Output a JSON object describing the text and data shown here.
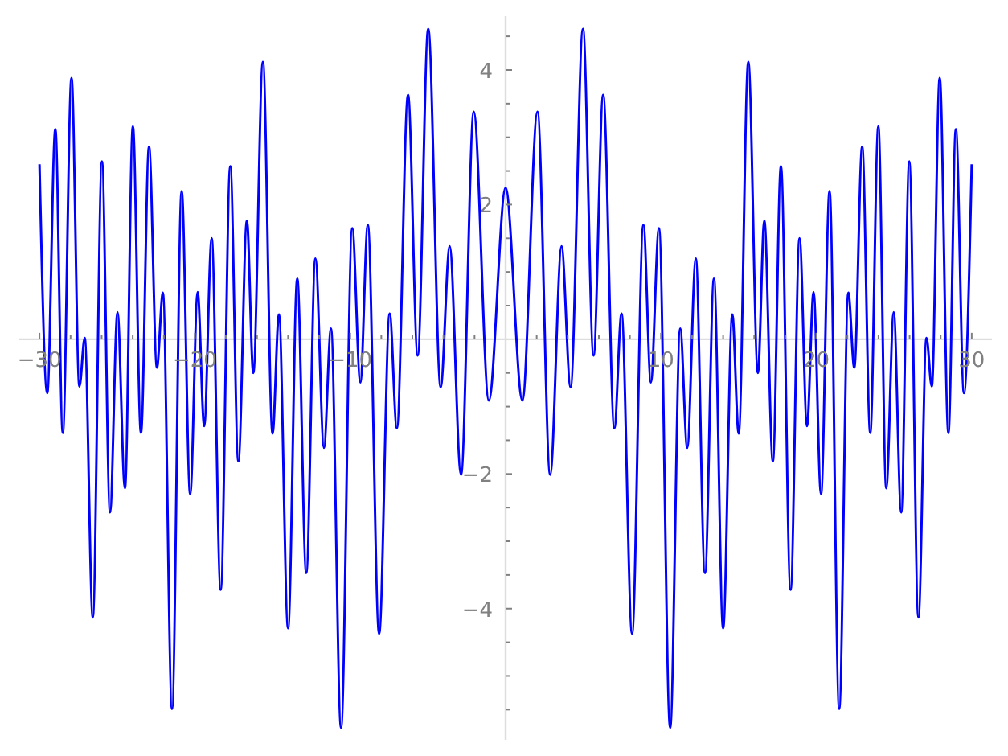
{
  "chart_data": {
    "type": "line",
    "x": [
      -30,
      -29.5,
      -28.98,
      -28.5,
      -27.94,
      -27.43,
      -27.09,
      -26.57,
      -25.98,
      -25.46,
      -24.98,
      -24.5,
      -23.99,
      -23.47,
      -22.95,
      -22.44,
      -22.06,
      -21.47,
      -20.85,
      -20.3,
      -19.82,
      -19.4,
      -18.92,
      -18.34,
      -17.72,
      -17.2,
      -16.65,
      -16.24,
      -15.62,
      -15,
      -14.59,
      -14,
      -13.41,
      -12.83,
      -12.24,
      -11.69,
      -11.24,
      -10.59,
      -9.87,
      -9.35,
      -8.87,
      -8.14,
      -7.46,
      -7,
      -6.28,
      -5.66,
      -4.98,
      -4.18,
      -3.6,
      -2.87,
      -2.05,
      -1.08,
      0,
      1.08,
      2.05,
      2.87,
      3.6,
      4.18,
      4.98,
      5.66,
      6.28,
      7,
      7.46,
      8.14,
      8.87,
      9.35,
      9.87,
      10.59,
      11.24,
      11.69,
      12.24,
      12.83,
      13.41,
      14,
      14.59,
      15,
      15.62,
      16.24,
      16.65,
      17.2,
      17.72,
      18.34,
      18.92,
      19.4,
      19.82,
      20.3,
      20.85,
      21.47,
      22.06,
      22.44,
      22.95,
      23.47,
      23.99,
      24.5,
      24.98,
      25.46,
      25.98,
      26.57,
      27.09,
      27.43,
      27.94,
      28.5,
      28.98,
      29.5,
      30
    ],
    "series": [
      {
        "color": "#0000ff",
        "values": [
          2.6,
          -0.8,
          3.12,
          -1.39,
          3.88,
          -0.7,
          0.02,
          -4.13,
          2.64,
          -2.57,
          0.4,
          -2.21,
          3.16,
          -1.39,
          2.86,
          -0.42,
          0.69,
          -5.49,
          2.2,
          -2.3,
          0.7,
          -1.29,
          1.5,
          -3.72,
          2.57,
          -1.81,
          1.76,
          -0.5,
          4.12,
          -1.4,
          0.37,
          -4.29,
          0.9,
          -3.47,
          1.2,
          -1.61,
          0.16,
          -5.77,
          1.65,
          -0.64,
          1.7,
          -4.37,
          0.38,
          -1.32,
          3.63,
          -0.24,
          4.61,
          -0.71,
          1.38,
          -2.01,
          3.38,
          -0.91,
          2.25,
          -0.91,
          3.38,
          -2.01,
          1.38,
          -0.71,
          4.61,
          -0.24,
          3.63,
          -1.32,
          0.38,
          -4.37,
          1.7,
          -0.64,
          1.65,
          -5.77,
          0.16,
          -1.61,
          1.2,
          -3.47,
          0.9,
          -4.29,
          0.37,
          -1.4,
          4.12,
          -0.5,
          1.76,
          -1.81,
          2.57,
          -3.72,
          1.5,
          -1.29,
          0.7,
          -2.3,
          2.2,
          -5.49,
          0.69,
          -0.42,
          2.86,
          -1.39,
          3.16,
          -2.21,
          0.4,
          -2.57,
          2.64,
          -4.13,
          0.02,
          -0.7,
          3.88,
          -1.39,
          3.12,
          -0.8,
          2.6
        ]
      }
    ],
    "xlim": [
      -31.3,
      31.3
    ],
    "ylim": [
      -5.95,
      4.8
    ],
    "xticks": [
      -30,
      {
        "value": -28,
        "label": null
      },
      {
        "value": -26,
        "label": null
      },
      {
        "value": -24,
        "label": null
      },
      {
        "value": -22,
        "label": null
      },
      -20,
      {
        "value": -18,
        "label": null
      },
      {
        "value": -16,
        "label": null
      },
      {
        "value": -14,
        "label": null
      },
      {
        "value": -12,
        "label": null
      },
      -10,
      {
        "value": -8,
        "label": null
      },
      {
        "value": -6,
        "label": null
      },
      {
        "value": -4,
        "label": null
      },
      {
        "value": -2,
        "label": null
      },
      {
        "value": 2,
        "label": null
      },
      {
        "value": 4,
        "label": null
      },
      {
        "value": 6,
        "label": null
      },
      {
        "value": 8,
        "label": null
      },
      10,
      {
        "value": 12,
        "label": null
      },
      {
        "value": 14,
        "label": null
      },
      {
        "value": 16,
        "label": null
      },
      {
        "value": 18,
        "label": null
      },
      20,
      {
        "value": 22,
        "label": null
      },
      {
        "value": 24,
        "label": null
      },
      {
        "value": 26,
        "label": null
      },
      {
        "value": 28,
        "label": null
      },
      30
    ],
    "yticks": [
      {
        "value": -5.5,
        "label": null
      },
      {
        "value": -5,
        "label": null
      },
      {
        "value": -4.5,
        "label": null
      },
      -4,
      {
        "value": -3.5,
        "label": null
      },
      {
        "value": -3,
        "label": null
      },
      {
        "value": -2.5,
        "label": null
      },
      -2,
      {
        "value": -1.5,
        "label": null
      },
      {
        "value": -1,
        "label": null
      },
      {
        "value": -0.5,
        "label": null
      },
      {
        "value": 0.5,
        "label": null
      },
      {
        "value": 1,
        "label": null
      },
      {
        "value": 1.5,
        "label": null
      },
      2,
      {
        "value": 2.5,
        "label": null
      },
      {
        "value": 3,
        "label": null
      },
      {
        "value": 3.5,
        "label": null
      },
      4,
      {
        "value": 4.5,
        "label": null
      }
    ],
    "grid": false
  }
}
